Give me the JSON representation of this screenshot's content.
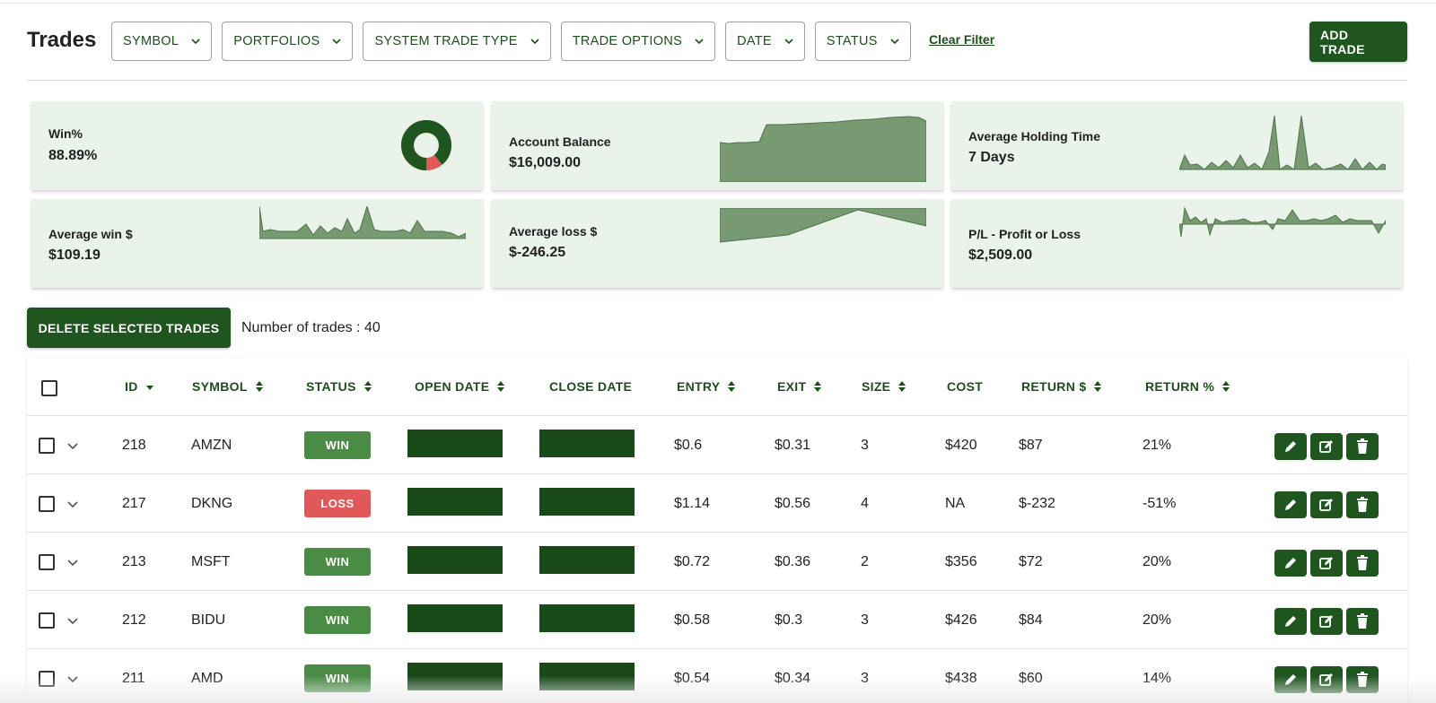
{
  "header": {
    "title": "Trades",
    "filters": [
      "SYMBOL",
      "PORTFOLIOS",
      "SYSTEM TRADE TYPE",
      "TRADE OPTIONS",
      "DATE",
      "STATUS"
    ],
    "clear_filter": "Clear Filter",
    "add_trade": "ADD TRADE"
  },
  "cards": {
    "win_pct": {
      "label": "Win%",
      "value": "88.89%",
      "win_fraction": 0.8889
    },
    "account_balance": {
      "label": "Account Balance",
      "value": "$16,009.00"
    },
    "avg_holding": {
      "label": "Average Holding Time",
      "value": "7 Days"
    },
    "avg_win": {
      "label": "Average win $",
      "value": "$109.19"
    },
    "avg_loss": {
      "label": "Average loss $",
      "value": "$-246.25"
    },
    "pl": {
      "label": "P/L - Profit or Loss",
      "value": "$2,509.00"
    }
  },
  "actions": {
    "delete_selected": "DELETE SELECTED TRADES",
    "trade_count": "Number of trades : 40"
  },
  "table": {
    "columns": [
      "ID",
      "SYMBOL",
      "STATUS",
      "OPEN DATE",
      "CLOSE DATE",
      "ENTRY",
      "EXIT",
      "SIZE",
      "COST",
      "RETURN $",
      "RETURN %"
    ],
    "rows": [
      {
        "id": "218",
        "symbol": "AMZN",
        "status": "WIN",
        "entry": "$0.6",
        "exit": "$0.31",
        "size": "3",
        "cost": "$420",
        "return_usd": "$87",
        "return_pct": "21%"
      },
      {
        "id": "217",
        "symbol": "DKNG",
        "status": "LOSS",
        "entry": "$1.14",
        "exit": "$0.56",
        "size": "4",
        "cost": "NA",
        "return_usd": "$-232",
        "return_pct": "-51%"
      },
      {
        "id": "213",
        "symbol": "MSFT",
        "status": "WIN",
        "entry": "$0.72",
        "exit": "$0.36",
        "size": "2",
        "cost": "$356",
        "return_usd": "$72",
        "return_pct": "20%"
      },
      {
        "id": "212",
        "symbol": "BIDU",
        "status": "WIN",
        "entry": "$0.58",
        "exit": "$0.3",
        "size": "3",
        "cost": "$426",
        "return_usd": "$84",
        "return_pct": "20%"
      },
      {
        "id": "211",
        "symbol": "AMD",
        "status": "WIN",
        "entry": "$0.54",
        "exit": "$0.34",
        "size": "3",
        "cost": "$438",
        "return_usd": "$60",
        "return_pct": "14%"
      }
    ]
  },
  "colors": {
    "primary": "#1f5620",
    "win_badge": "#4a8c45",
    "loss_badge": "#e0585a",
    "card_bg": "#eaf3ea",
    "spark_fill": "#789a72",
    "redaction": "#1a4a1a"
  },
  "icons": [
    "chevron-down-icon",
    "sort-icon",
    "pencil-icon",
    "edit-icon",
    "trash-icon"
  ]
}
